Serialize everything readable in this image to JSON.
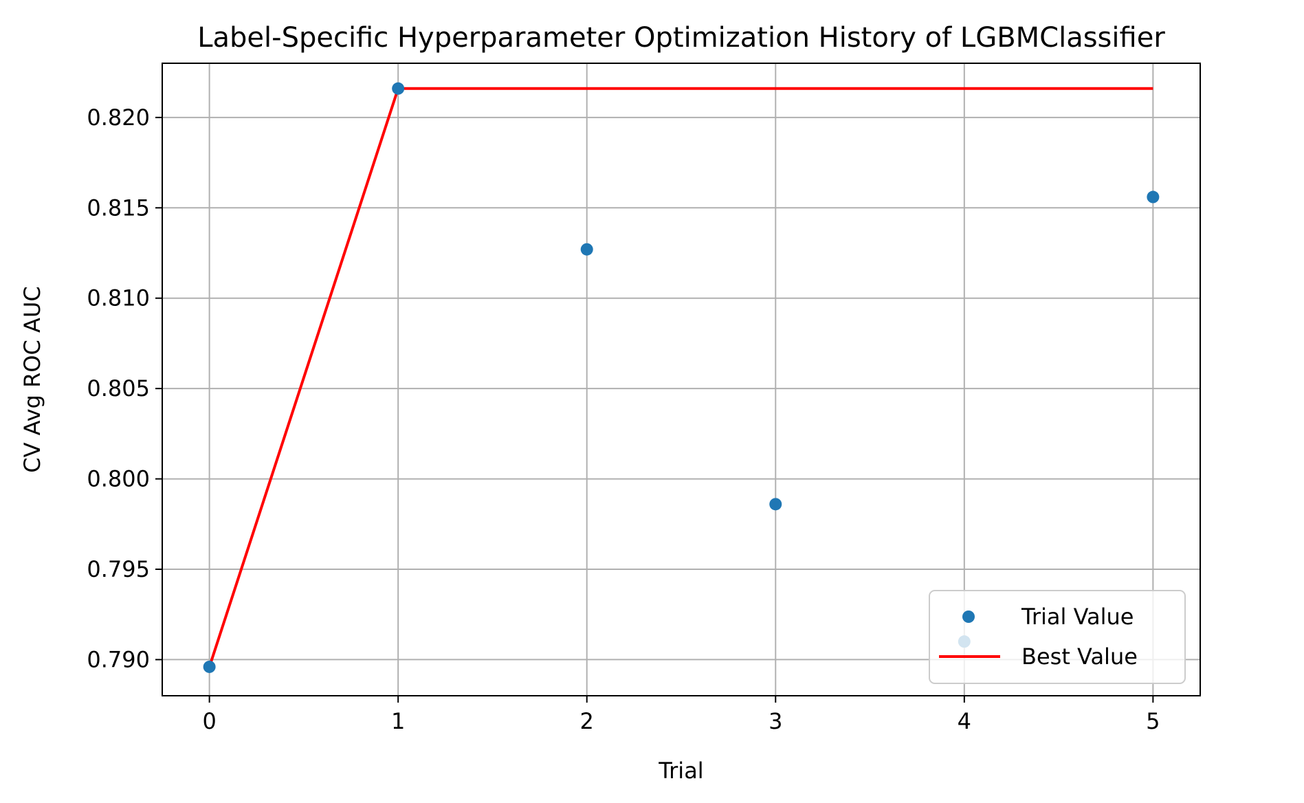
{
  "chart_data": {
    "type": "scatter",
    "title": "Label-Specific Hyperparameter Optimization History of LGBMClassifier",
    "xlabel": "Trial",
    "ylabel": "CV Avg ROC AUC",
    "xlim": [
      -0.25,
      5.25
    ],
    "ylim": [
      0.788,
      0.823
    ],
    "xticks": [
      0,
      1,
      2,
      3,
      4,
      5
    ],
    "xtick_labels": [
      "0",
      "1",
      "2",
      "3",
      "4",
      "5"
    ],
    "yticks": [
      0.79,
      0.795,
      0.8,
      0.805,
      0.81,
      0.815,
      0.82
    ],
    "ytick_labels": [
      "0.790",
      "0.795",
      "0.800",
      "0.805",
      "0.810",
      "0.815",
      "0.820"
    ],
    "grid": true,
    "legend_position": "lower right",
    "series": [
      {
        "name": "Trial Value",
        "kind": "scatter",
        "color": "#1f77b4",
        "x": [
          0,
          1,
          2,
          3,
          4,
          5
        ],
        "y": [
          0.7896,
          0.8216,
          0.8127,
          0.7986,
          0.791,
          0.8156
        ]
      },
      {
        "name": "Best Value",
        "kind": "line",
        "color": "#ff0000",
        "x": [
          0,
          1,
          2,
          3,
          4,
          5
        ],
        "y": [
          0.7896,
          0.8216,
          0.8216,
          0.8216,
          0.8216,
          0.8216
        ]
      }
    ]
  }
}
